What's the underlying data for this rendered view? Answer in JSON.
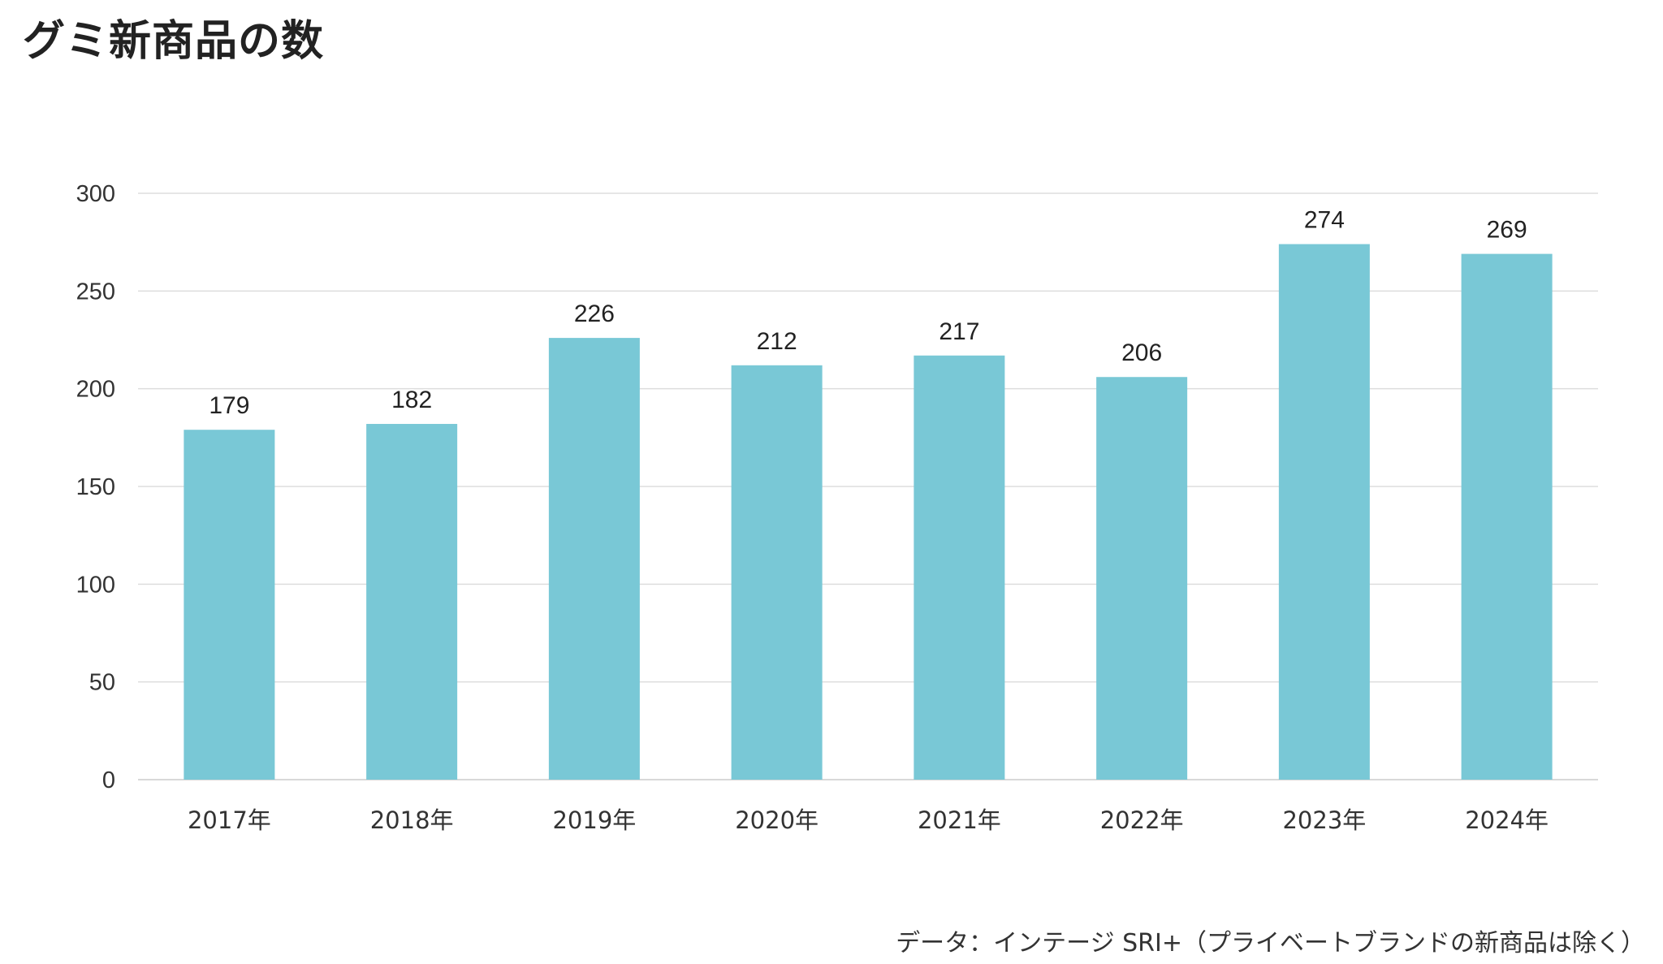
{
  "title": "グミ新商品の数",
  "source": "データ：インテージ SRI+（プライベートブランドの新商品は除く）",
  "colors": {
    "bar": "#79c8d6",
    "grid": "#dddddd",
    "axis": "#cccccc",
    "text": "#333333"
  },
  "chart_data": {
    "type": "bar",
    "title": "グミ新商品の数",
    "xlabel": "",
    "ylabel": "",
    "ylim": [
      0,
      300
    ],
    "yticks": [
      0,
      50,
      100,
      150,
      200,
      250,
      300
    ],
    "grid": true,
    "legend": "none",
    "categories": [
      "2017年",
      "2018年",
      "2019年",
      "2020年",
      "2021年",
      "2022年",
      "2023年",
      "2024年"
    ],
    "values": [
      179,
      182,
      226,
      212,
      217,
      206,
      274,
      269
    ],
    "data_labels": [
      "179",
      "182",
      "226",
      "212",
      "217",
      "206",
      "274",
      "269"
    ]
  }
}
